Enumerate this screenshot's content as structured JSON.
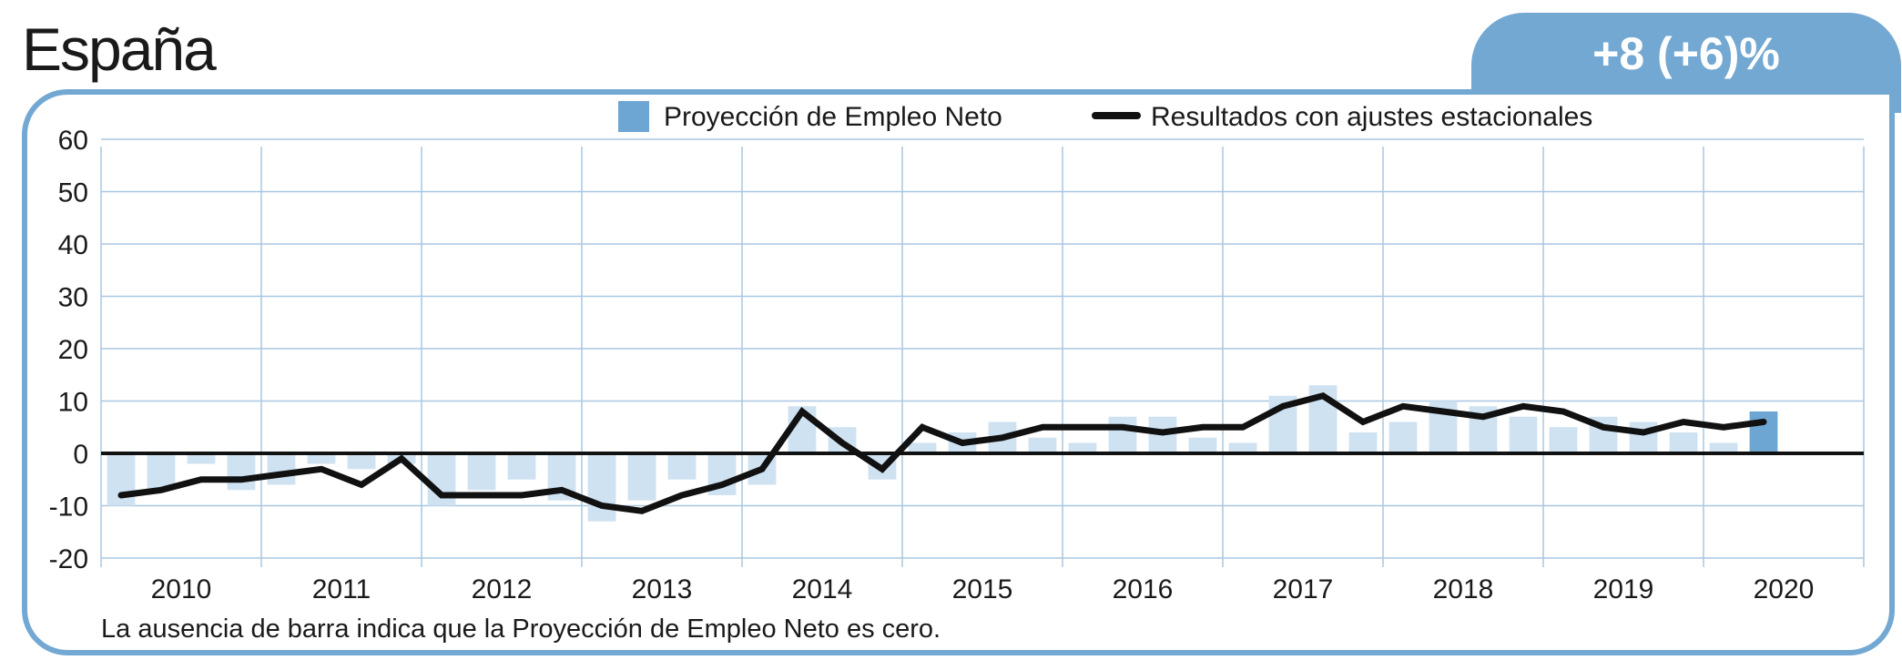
{
  "header": {
    "title": "España",
    "badge": "+8 (+6)%"
  },
  "note": "La ausencia de barra indica que la Proyección de Empleo Neto es cero.",
  "colors": {
    "border": "#73a8d2",
    "bar": "#cfe2f1",
    "bar_current": "#6ea6d3",
    "line": "#111111",
    "grid": "#a9c7e2"
  },
  "chart_data": {
    "type": "bar",
    "title": "",
    "xlabel": "",
    "ylabel": "",
    "ylim": [
      -20,
      60
    ],
    "yticks": [
      60,
      50,
      40,
      30,
      20,
      10,
      0,
      -10,
      -20
    ],
    "years": [
      "2010",
      "2011",
      "2012",
      "2013",
      "2014",
      "2015",
      "2016",
      "2017",
      "2018",
      "2019",
      "2020"
    ],
    "grid": true,
    "legend_position": "top-center",
    "series": [
      {
        "name": "Proyección de Empleo Neto",
        "type": "bar",
        "values": [
          -10,
          -7,
          -2,
          -7,
          -6,
          -2,
          -3,
          -2,
          -10,
          -7,
          -5,
          -9,
          -13,
          -9,
          -5,
          -8,
          -6,
          9,
          5,
          -5,
          2,
          4,
          6,
          3,
          2,
          7,
          7,
          3,
          2,
          11,
          13,
          4,
          6,
          10,
          9,
          7,
          5,
          7,
          6,
          4,
          2,
          8
        ]
      },
      {
        "name": "Resultados con ajustes estacionales",
        "type": "line",
        "values": [
          -8,
          -7,
          -5,
          -5,
          -4,
          -3,
          -6,
          -1,
          -8,
          -8,
          -8,
          -7,
          -10,
          -11,
          -8,
          -6,
          -3,
          8,
          2,
          -3,
          5,
          2,
          3,
          5,
          5,
          5,
          4,
          5,
          5,
          9,
          11,
          6,
          9,
          8,
          7,
          9,
          8,
          5,
          4,
          6,
          5,
          6
        ]
      }
    ]
  }
}
